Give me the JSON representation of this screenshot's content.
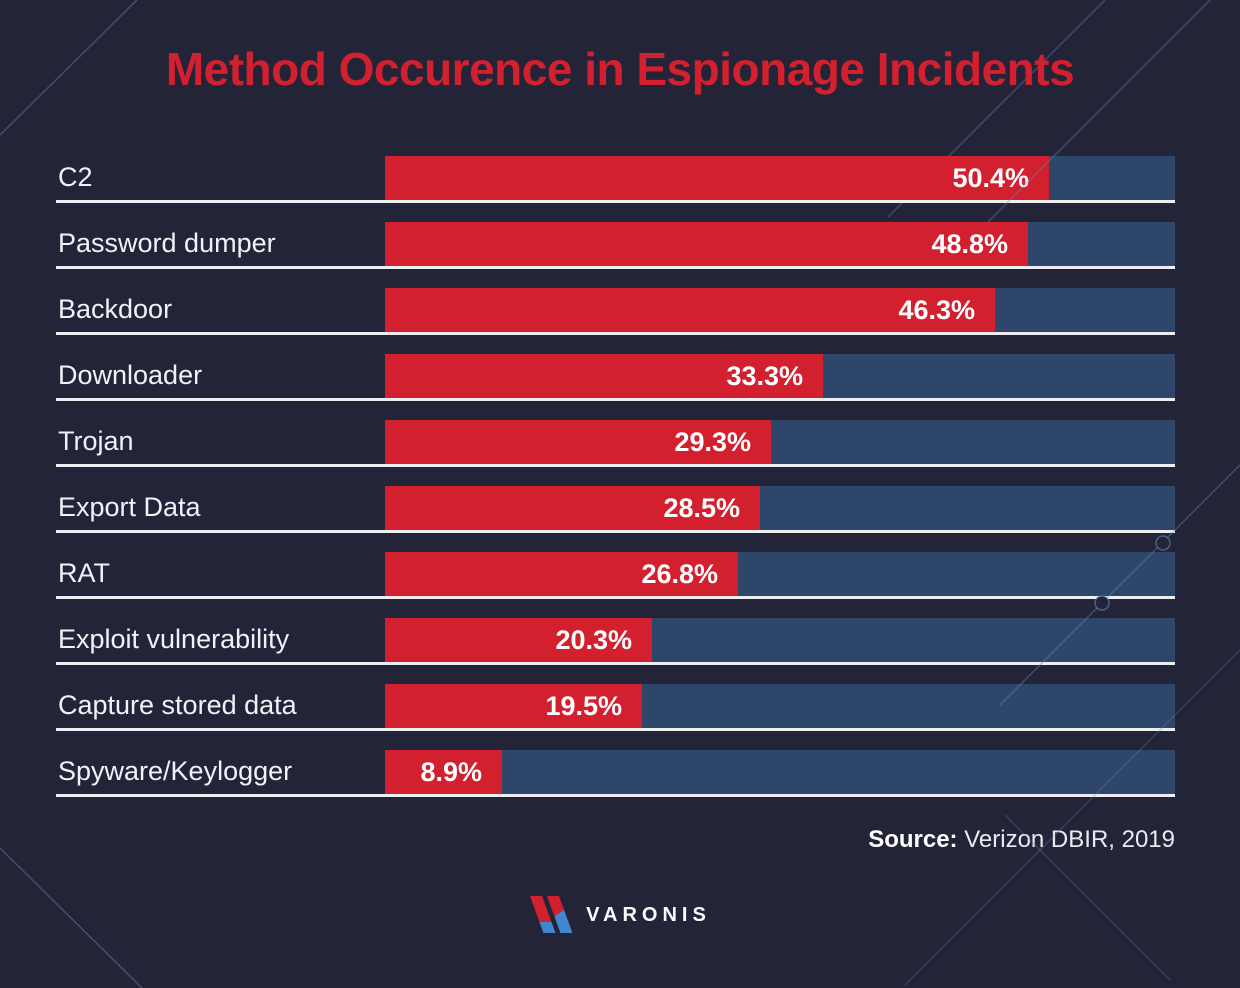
{
  "page": {
    "background_color": "#232438",
    "accent_red": "#d2202f",
    "track_blue": "#2f466b",
    "line_decor_blue": "#6487bd"
  },
  "title": {
    "text": "Method Occurence in Espionage Incidents",
    "color": "#d2202f"
  },
  "chart_data": {
    "type": "bar",
    "orientation": "horizontal",
    "title": "Method Occurence in Espionage Incidents",
    "categories": [
      "C2",
      "Password dumper",
      "Backdoor",
      "Downloader",
      "Trojan",
      "Export Data",
      "RAT",
      "Exploit vulnerability",
      "Capture stored data",
      "Spyware/Keylogger"
    ],
    "values": [
      50.4,
      48.8,
      46.3,
      33.3,
      29.3,
      28.5,
      26.8,
      20.3,
      19.5,
      8.9
    ],
    "value_labels": [
      "50.4%",
      "48.8%",
      "46.3%",
      "33.3%",
      "29.3%",
      "28.5%",
      "26.8%",
      "20.3%",
      "19.5%",
      "8.9%"
    ],
    "xlabel": "",
    "ylabel": "",
    "xlim": [
      0,
      60
    ],
    "grid": false,
    "legend": false,
    "bar_color": "#d2202f",
    "track_color": "#2f466b",
    "value_label_color": "#ffffff",
    "category_label_color": "#f0f2f7"
  },
  "source": {
    "label": "Source:",
    "text": " Verizon DBIR, 2019"
  },
  "logo": {
    "text": "VARONIS",
    "mark_red": "#d2202f",
    "mark_blue": "#4187cf"
  }
}
